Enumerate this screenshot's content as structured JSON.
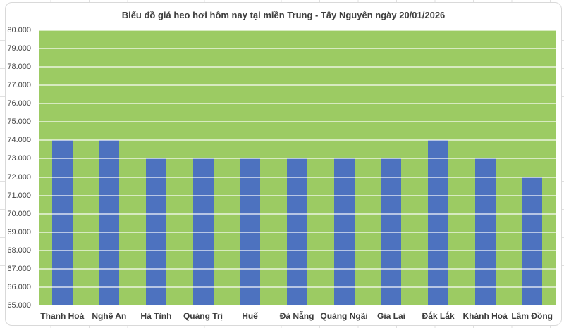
{
  "chart_data": {
    "type": "bar",
    "title": "Biểu đồ giá heo hơi hôm nay tại miền Trung - Tây Nguyên ngày 20/01/2026",
    "categories": [
      "Thanh Hoá",
      "Nghệ An",
      "Hà Tĩnh",
      "Quảng Trị",
      "Huế",
      "Đà Nẵng",
      "Quảng Ngãi",
      "Gia Lai",
      "Đắk Lắk",
      "Khánh Hoà",
      "Lâm Đồng"
    ],
    "values": [
      74000,
      74000,
      73000,
      73000,
      73000,
      73000,
      73000,
      73000,
      74000,
      73000,
      72000
    ],
    "xlabel": "",
    "ylabel": "",
    "ylim": [
      65000,
      80000
    ],
    "ytick_step": 1000,
    "ytick_labels": [
      "80.000",
      "79.000",
      "78.000",
      "77.000",
      "76.000",
      "75.000",
      "74.000",
      "73.000",
      "72.000",
      "71.000",
      "70.000",
      "69.000",
      "68.000",
      "67.000",
      "66.000",
      "65.000"
    ],
    "grid": true,
    "legend": false
  },
  "colors": {
    "plot_background": "#9ccb63",
    "bar_fill": "#4d72bf",
    "gridline": "rgba(255,255,255,0.6)",
    "frame_border": "#d9d9d9",
    "title_text": "#3e3e3e",
    "axis_text": "#3c3c3c"
  }
}
